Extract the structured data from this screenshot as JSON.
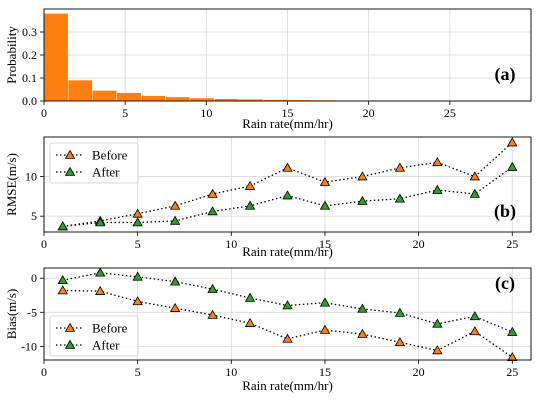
{
  "chart_data": [
    {
      "type": "bar",
      "panel_label": "(a)",
      "xlabel": "Rain rate(mm/hr)",
      "ylabel": "Probability",
      "xlim": [
        0,
        30
      ],
      "ylim": [
        0,
        0.4
      ],
      "xticks": [
        0,
        5,
        10,
        15,
        20,
        25
      ],
      "yticks": [
        0.0,
        0.1,
        0.2,
        0.3
      ],
      "ytick_labels": [
        "0.0",
        "0.1",
        "0.2",
        "0.3"
      ],
      "bar_width": 1.5,
      "x": [
        0.75,
        2.25,
        3.75,
        5.25,
        6.75,
        8.25,
        9.75,
        11.25,
        12.75,
        14.25,
        15.75,
        17.25,
        18.75,
        20.25
      ],
      "values": [
        0.38,
        0.09,
        0.045,
        0.035,
        0.022,
        0.017,
        0.012,
        0.009,
        0.007,
        0.005,
        0.004,
        0.003,
        0.002,
        0.002
      ],
      "color": "#ff7f0e",
      "grid": true
    },
    {
      "type": "line",
      "panel_label": "(b)",
      "xlabel": "Rain rate(mm/hr)",
      "ylabel": "RMSE(m/s)",
      "xlim": [
        0,
        26
      ],
      "ylim": [
        3,
        15
      ],
      "xticks": [
        0,
        5,
        10,
        15,
        20,
        25
      ],
      "yticks": [
        5,
        10
      ],
      "legend": "upper-left",
      "grid": true,
      "x": [
        1,
        3,
        5,
        7,
        9,
        11,
        13,
        15,
        17,
        19,
        21,
        23,
        25
      ],
      "series": [
        {
          "name": "Before",
          "color": "#ff7f0e",
          "values": [
            3.7,
            4.4,
            5.3,
            6.3,
            7.8,
            8.8,
            11.1,
            9.3,
            10.0,
            11.1,
            11.8,
            10.0,
            14.3
          ]
        },
        {
          "name": "After",
          "color": "#2ca02c",
          "values": [
            3.7,
            4.2,
            4.2,
            4.4,
            5.6,
            6.3,
            7.6,
            6.3,
            6.9,
            7.2,
            8.3,
            7.8,
            11.2
          ]
        }
      ]
    },
    {
      "type": "line",
      "panel_label": "(c)",
      "xlabel": "Rain rate(mm/hr)",
      "ylabel": "Bias(m/s)",
      "xlim": [
        0,
        26
      ],
      "ylim": [
        -12,
        1.5
      ],
      "xticks": [
        0,
        5,
        10,
        15,
        20,
        25
      ],
      "yticks": [
        0,
        -5,
        -10
      ],
      "legend": "lower-left",
      "grid": true,
      "x": [
        1,
        3,
        5,
        7,
        9,
        11,
        13,
        15,
        17,
        19,
        21,
        23,
        25
      ],
      "series": [
        {
          "name": "Before",
          "color": "#ff7f0e",
          "values": [
            -1.8,
            -1.9,
            -3.4,
            -4.4,
            -5.4,
            -6.6,
            -8.9,
            -7.6,
            -8.2,
            -9.4,
            -10.6,
            -7.8,
            -11.6
          ]
        },
        {
          "name": "After",
          "color": "#2ca02c",
          "values": [
            -0.3,
            0.8,
            0.2,
            -0.5,
            -1.6,
            -2.9,
            -4.0,
            -3.6,
            -4.5,
            -5.1,
            -6.7,
            -5.6,
            -7.9
          ]
        }
      ]
    }
  ]
}
